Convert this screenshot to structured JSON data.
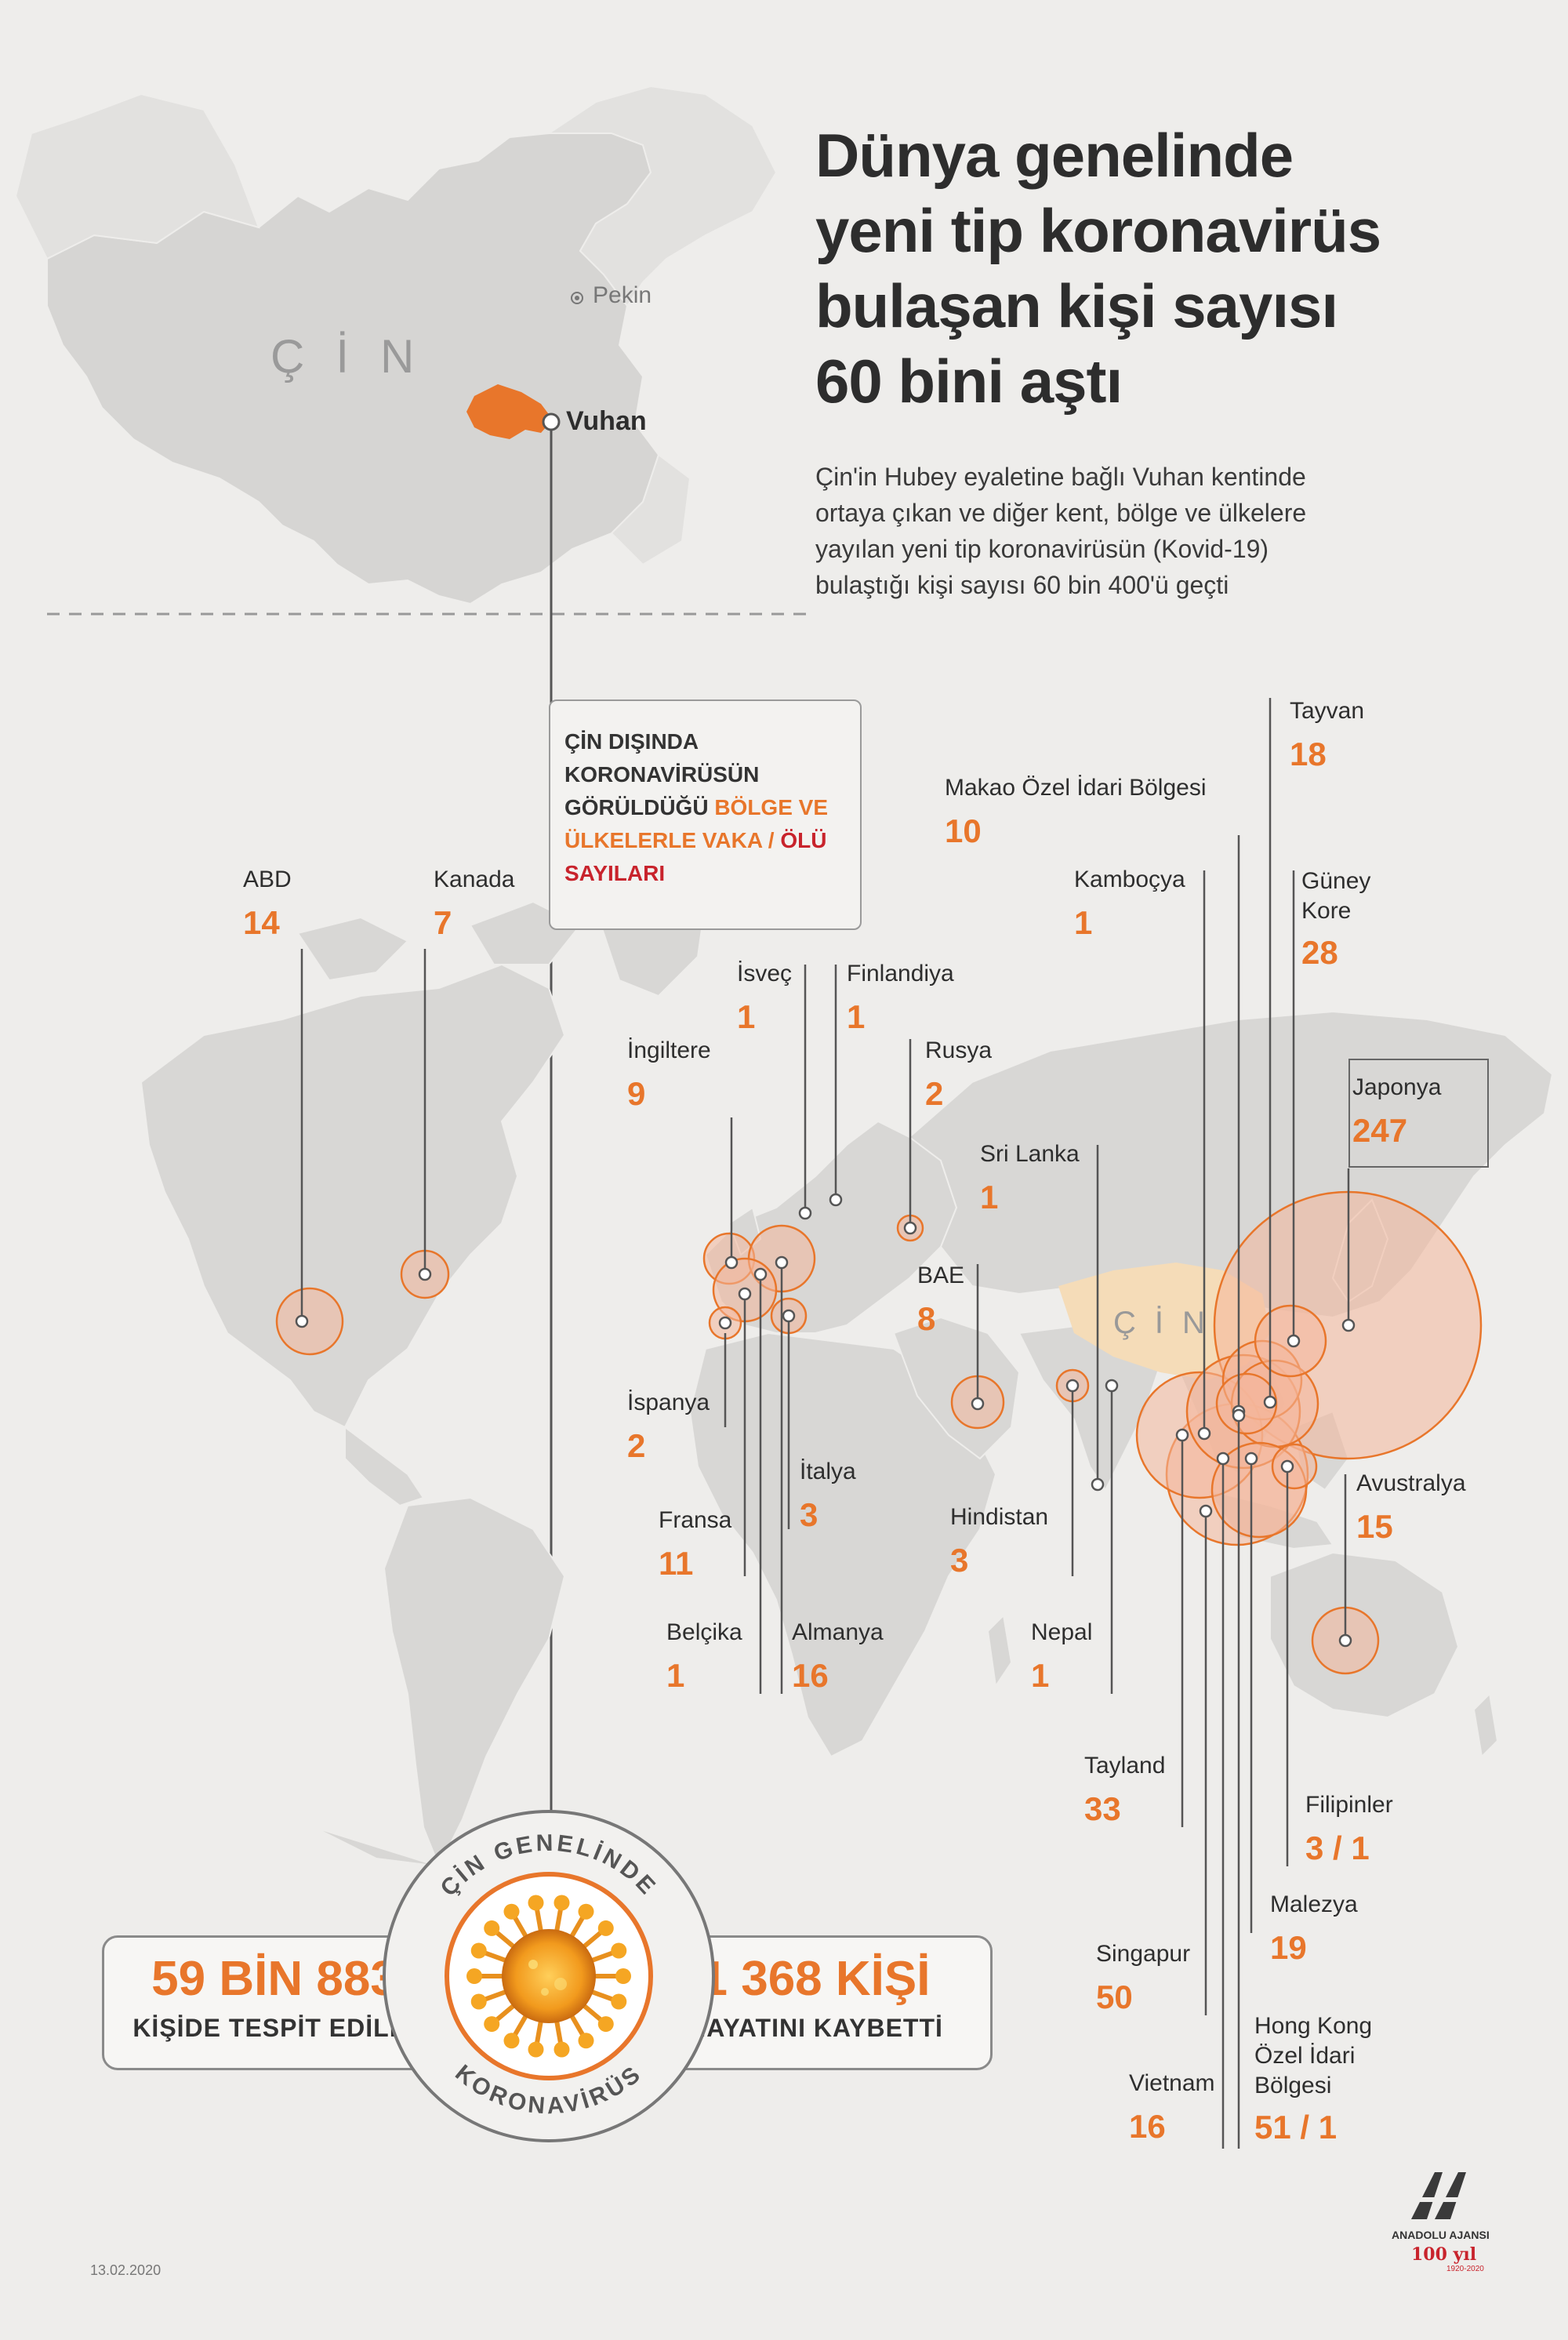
{
  "title_lines": [
    "Dünya genelinde",
    "yeni tip koronavirüs",
    "bulaşan kişi sayısı",
    "60 bini aştı"
  ],
  "subtitle_lines": [
    "Çin'in Hubey eyaletine bağlı Vuhan kentinde",
    "ortaya çıkan ve diğer kent, bölge ve ülkelere",
    "yayılan yeni tip koronavirüsün (Kovid-19)",
    "bulaştığı kişi sayısı 60 bin 400'ü geçti"
  ],
  "china_map": {
    "country_letters": "ÇİN",
    "capital": "Pekin",
    "outbreak_city": "Vuhan"
  },
  "info_box": {
    "line1": "ÇİN DIŞINDA",
    "line2": "KORONAVİRÜSÜN",
    "line3_plain": "GÖRÜLDÜĞÜ ",
    "line3_highlight": "BÖLGE VE",
    "line4_highlight": "ÜLKELERLE VAKA / ",
    "line4_red": "ÖLÜ",
    "line5_red": "SAYILARI"
  },
  "world_map_china_label": "ÇİN",
  "countries": [
    {
      "name": "ABD",
      "value": "14"
    },
    {
      "name": "Kanada",
      "value": "7"
    },
    {
      "name": "İsveç",
      "value": "1"
    },
    {
      "name": "Finlandiya",
      "value": "1"
    },
    {
      "name": "İngiltere",
      "value": "9"
    },
    {
      "name": "Rusya",
      "value": "2"
    },
    {
      "name": "İspanya",
      "value": "2"
    },
    {
      "name": "İtalya",
      "value": "3"
    },
    {
      "name": "Fransa",
      "value": "11"
    },
    {
      "name": "Belçika",
      "value": "1"
    },
    {
      "name": "Almanya",
      "value": "16"
    },
    {
      "name": "BAE",
      "value": "8"
    },
    {
      "name": "Sri Lanka",
      "value": "1"
    },
    {
      "name": "Hindistan",
      "value": "3"
    },
    {
      "name": "Nepal",
      "value": "1"
    },
    {
      "name": "Makao Özel İdari Bölgesi",
      "value": "10"
    },
    {
      "name": "Tayvan",
      "value": "18"
    },
    {
      "name": "Kamboçya",
      "value": "1"
    },
    {
      "name": "Güney Kore",
      "value": "28"
    },
    {
      "name": "Japonya",
      "value": "247"
    },
    {
      "name": "Avustralya",
      "value": "15"
    },
    {
      "name": "Tayland",
      "value": "33"
    },
    {
      "name": "Filipinler",
      "value": "3 / 1"
    },
    {
      "name": "Malezya",
      "value": "19"
    },
    {
      "name": "Singapur",
      "value": "50"
    },
    {
      "name": "Hong Kong Özel İdari Bölgesi",
      "value": "51 / 1"
    },
    {
      "name": "Vietnam",
      "value": "16"
    }
  ],
  "china_totals": {
    "ring_top": "ÇİN GENELİNDE",
    "ring_bottom": "KORONAVİRÜS",
    "cases_value": "59 BİN 883",
    "cases_caption": "KİŞİDE TESPİT EDİLDİ",
    "deaths_value": "1 368 KİŞİ",
    "deaths_caption": "HAYATINI KAYBETTİ"
  },
  "date": "13.02.2020",
  "agency": "ANADOLU AJANSI",
  "anniversary": "100 yıl",
  "anniversary_years": "1920-2020",
  "colors": {
    "accent": "#e8762b",
    "death": "#c8232c",
    "land": "#d8d7d5",
    "china": "#f5dcb8",
    "background": "#eeedeb"
  }
}
